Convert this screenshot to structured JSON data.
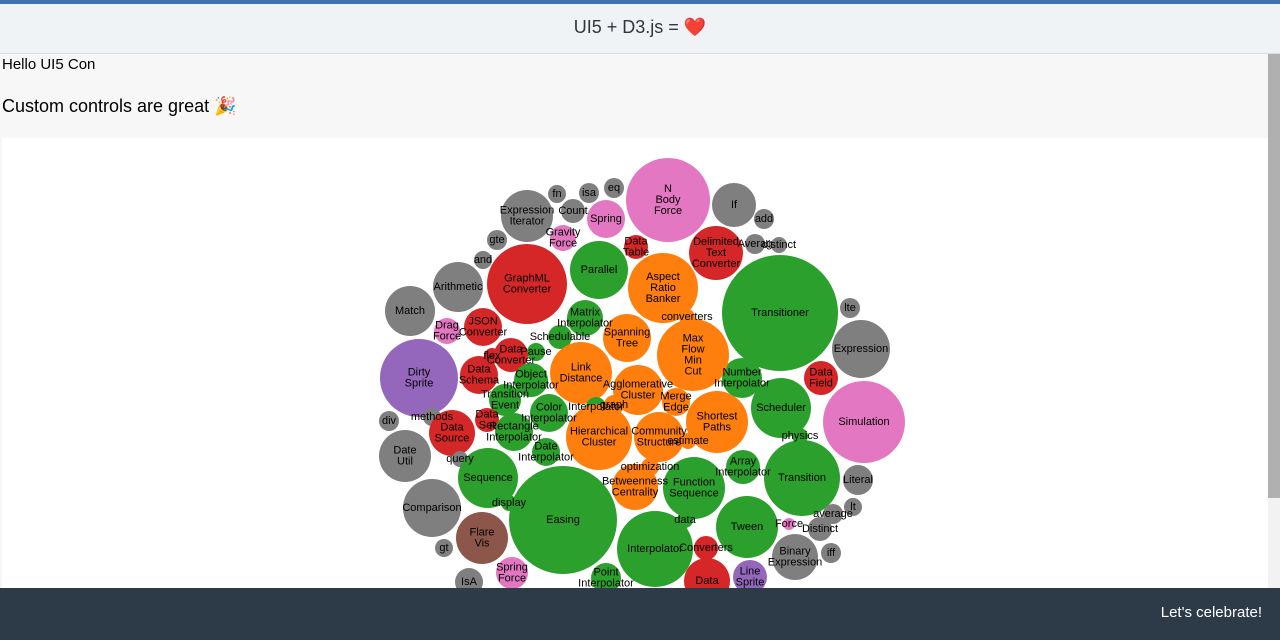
{
  "header": {
    "title": "UI5 + D3.js = ❤️"
  },
  "content": {
    "greeting": "Hello UI5 Con",
    "subtitle": "Custom controls are great 🎉"
  },
  "chart_data": {
    "type": "bubble",
    "nodes": [
      {
        "label": [
          "N",
          "Body",
          "Force"
        ],
        "color": "#e377c2",
        "value": 1764
      },
      {
        "label": [
          "If"
        ],
        "color": "#7f7f7f",
        "value": 484
      },
      {
        "label": [
          "add"
        ],
        "color": "#7f7f7f",
        "value": 100
      },
      {
        "label": [
          "Averag"
        ],
        "color": "#7f7f7f",
        "value": 100
      },
      {
        "label": [
          "distinct"
        ],
        "color": "#7f7f7f",
        "value": 64
      },
      {
        "label": [
          "Delimited",
          "Text",
          "Converter"
        ],
        "color": "#d62728",
        "value": 729
      },
      {
        "label": [
          "Transitioner"
        ],
        "color": "#2ca02c",
        "value": 3364
      },
      {
        "label": [
          "lte"
        ],
        "color": "#7f7f7f",
        "value": 100
      },
      {
        "label": [
          "Expression"
        ],
        "color": "#7f7f7f",
        "value": 841
      },
      {
        "label": [
          "Simulation"
        ],
        "color": "#e377c2",
        "value": 1681
      },
      {
        "label": [
          "Data",
          "Field"
        ],
        "color": "#d62728",
        "value": 289
      },
      {
        "label": [
          "Scheduler"
        ],
        "color": "#2ca02c",
        "value": 900
      },
      {
        "label": [
          "physics"
        ],
        "color": "#2ca02c",
        "value": 64
      },
      {
        "label": [
          "Transition"
        ],
        "color": "#2ca02c",
        "value": 1444
      },
      {
        "label": [
          "Literal"
        ],
        "color": "#7f7f7f",
        "value": 225
      },
      {
        "label": [
          "lt"
        ],
        "color": "#7f7f7f",
        "value": 81
      },
      {
        "label": [
          "average"
        ],
        "color": "#7f7f7f",
        "value": 100
      },
      {
        "label": [
          "Distinct"
        ],
        "color": "#7f7f7f",
        "value": 144
      },
      {
        "label": [
          "iff"
        ],
        "color": "#7f7f7f",
        "value": 100
      },
      {
        "label": [
          "Binary",
          "Expression"
        ],
        "color": "#7f7f7f",
        "value": 529
      },
      {
        "label": [
          "Force"
        ],
        "color": "#e377c2",
        "value": 36
      },
      {
        "label": [
          "Tween"
        ],
        "color": "#2ca02c",
        "value": 961
      },
      {
        "label": [
          "Line",
          "Sprite"
        ],
        "color": "#9467bd",
        "value": 289
      },
      {
        "label": [
          "Data"
        ],
        "color": "#d62728",
        "value": 529
      },
      {
        "label": [
          "Converters"
        ],
        "color": "#d62728",
        "value": 144
      },
      {
        "label": [
          "Interpolator"
        ],
        "color": "#2ca02c",
        "value": 1444
      },
      {
        "label": [
          "Array",
          "Interpolator"
        ],
        "color": "#2ca02c",
        "value": 289
      },
      {
        "label": [
          "Function",
          "Sequence"
        ],
        "color": "#2ca02c",
        "value": 961
      },
      {
        "label": [
          "data"
        ],
        "color": "#2ca02c",
        "value": 64
      },
      {
        "label": [
          "Shortest",
          "Paths"
        ],
        "color": "#ff7f0e",
        "value": 961
      },
      {
        "label": [
          "estimate"
        ],
        "color": "#ff7f0e",
        "value": 64
      },
      {
        "label": [
          "Number",
          "Interpolator"
        ],
        "color": "#2ca02c",
        "value": 400
      },
      {
        "label": [
          "Max",
          "Flow",
          "Min",
          "Cut"
        ],
        "color": "#ff7f0e",
        "value": 1296
      },
      {
        "label": [
          "converters"
        ],
        "color": "#ff7f0e",
        "value": 64
      },
      {
        "label": [
          "Aspect",
          "Ratio",
          "Banker"
        ],
        "color": "#ff7f0e",
        "value": 1225
      },
      {
        "label": [
          "Data",
          "Table"
        ],
        "color": "#d62728",
        "value": 144
      },
      {
        "label": [
          "Parallel"
        ],
        "color": "#2ca02c",
        "value": 841
      },
      {
        "label": [
          "Spring"
        ],
        "color": "#e377c2",
        "value": 361
      },
      {
        "label": [
          "eq"
        ],
        "color": "#7f7f7f",
        "value": 100
      },
      {
        "label": [
          "isa"
        ],
        "color": "#7f7f7f",
        "value": 100
      },
      {
        "label": [
          "fn"
        ],
        "color": "#7f7f7f",
        "value": 81
      },
      {
        "label": [
          "Count"
        ],
        "color": "#7f7f7f",
        "value": 144
      },
      {
        "label": [
          "Expression",
          "Iterator"
        ],
        "color": "#7f7f7f",
        "value": 676
      },
      {
        "label": [
          "gte"
        ],
        "color": "#7f7f7f",
        "value": 100
      },
      {
        "label": [
          "Gravity",
          "Force"
        ],
        "color": "#e377c2",
        "value": 169
      },
      {
        "label": [
          "and"
        ],
        "color": "#7f7f7f",
        "value": 81
      },
      {
        "label": [
          "GraphML",
          "Converter"
        ],
        "color": "#d62728",
        "value": 1600
      },
      {
        "label": [
          "Arithmetic"
        ],
        "color": "#7f7f7f",
        "value": 625
      },
      {
        "label": [
          "Match"
        ],
        "color": "#7f7f7f",
        "value": 625
      },
      {
        "label": [
          "Drag",
          "Force"
        ],
        "color": "#e377c2",
        "value": 169
      },
      {
        "label": [
          "JSON",
          "Converter"
        ],
        "color": "#d62728",
        "value": 361
      },
      {
        "label": [
          "Matrix",
          "Interpolator"
        ],
        "color": "#2ca02c",
        "value": 324
      },
      {
        "label": [
          "Schedulable"
        ],
        "color": "#2ca02c",
        "value": 144
      },
      {
        "label": [
          "Spanning",
          "Tree"
        ],
        "color": "#ff7f0e",
        "value": 576
      },
      {
        "label": [
          "Link",
          "Distance"
        ],
        "color": "#ff7f0e",
        "value": 961
      },
      {
        "label": [
          "Pause"
        ],
        "color": "#2ca02c",
        "value": 81
      },
      {
        "label": [
          "Data",
          "Converter"
        ],
        "color": "#d62728",
        "value": 289
      },
      {
        "label": [
          "flex"
        ],
        "color": "#d62728",
        "value": 64
      },
      {
        "label": [
          "Dirty",
          "Sprite"
        ],
        "color": "#9467bd",
        "value": 1521
      },
      {
        "label": [
          "Data",
          "Schema"
        ],
        "color": "#d62728",
        "value": 361
      },
      {
        "label": [
          "Object",
          "Interpolator"
        ],
        "color": "#2ca02c",
        "value": 289
      },
      {
        "label": [
          "Agglomerative",
          "Cluster"
        ],
        "color": "#ff7f0e",
        "value": 625
      },
      {
        "label": [
          "Merge",
          "Edge"
        ],
        "color": "#ff7f0e",
        "value": 196
      },
      {
        "label": [
          "Transition",
          "Event"
        ],
        "color": "#2ca02c",
        "value": 256
      },
      {
        "label": [
          "Color",
          "Interpolator"
        ],
        "color": "#2ca02c",
        "value": 361
      },
      {
        "label": [
          "Interpolator"
        ],
        "color": "#2ca02c",
        "value": 100
      },
      {
        "label": [
          "graph"
        ],
        "color": "#ff7f0e",
        "value": 100
      },
      {
        "label": [
          "Data",
          "Set"
        ],
        "color": "#d62728",
        "value": 144
      },
      {
        "label": [
          "methods"
        ],
        "color": "#7f7f7f",
        "value": 81
      },
      {
        "label": [
          "div"
        ],
        "color": "#7f7f7f",
        "value": 100
      },
      {
        "label": [
          "Data",
          "Source"
        ],
        "color": "#d62728",
        "value": 529
      },
      {
        "label": [
          "Rectangle",
          "Interpolator"
        ],
        "color": "#2ca02c",
        "value": 361
      },
      {
        "label": [
          "Hierarchical",
          "Cluster"
        ],
        "color": "#ff7f0e",
        "value": 1089
      },
      {
        "label": [
          "Community",
          "Structure"
        ],
        "color": "#ff7f0e",
        "value": 625
      },
      {
        "label": [
          "Date",
          "Interpolator"
        ],
        "color": "#2ca02c",
        "value": 196
      },
      {
        "label": [
          "Date",
          "Util"
        ],
        "color": "#7f7f7f",
        "value": 676
      },
      {
        "label": [
          "query"
        ],
        "color": "#7f7f7f",
        "value": 64
      },
      {
        "label": [
          "Sequence"
        ],
        "color": "#2ca02c",
        "value": 900
      },
      {
        "label": [
          "optimization"
        ],
        "color": "#ff7f0e",
        "value": 81
      },
      {
        "label": [
          "Betweenness",
          "Centrality"
        ],
        "color": "#ff7f0e",
        "value": 529
      },
      {
        "label": [
          "display"
        ],
        "color": "#2ca02c",
        "value": 64
      },
      {
        "label": [
          "Easing"
        ],
        "color": "#2ca02c",
        "value": 2916
      },
      {
        "label": [
          "Comparison"
        ],
        "color": "#7f7f7f",
        "value": 841
      },
      {
        "label": [
          "Flare",
          "Vis"
        ],
        "color": "#8c564b",
        "value": 676
      },
      {
        "label": [
          "gt"
        ],
        "color": "#7f7f7f",
        "value": 81
      },
      {
        "label": [
          "Spring",
          "Force"
        ],
        "color": "#e377c2",
        "value": 256
      },
      {
        "label": [
          "Point",
          "Interpolator"
        ],
        "color": "#2ca02c",
        "value": 225
      },
      {
        "label": [
          "IsA"
        ],
        "color": "#7f7f7f",
        "value": 196
      }
    ]
  },
  "footer": {
    "button": "Let's celebrate!"
  }
}
